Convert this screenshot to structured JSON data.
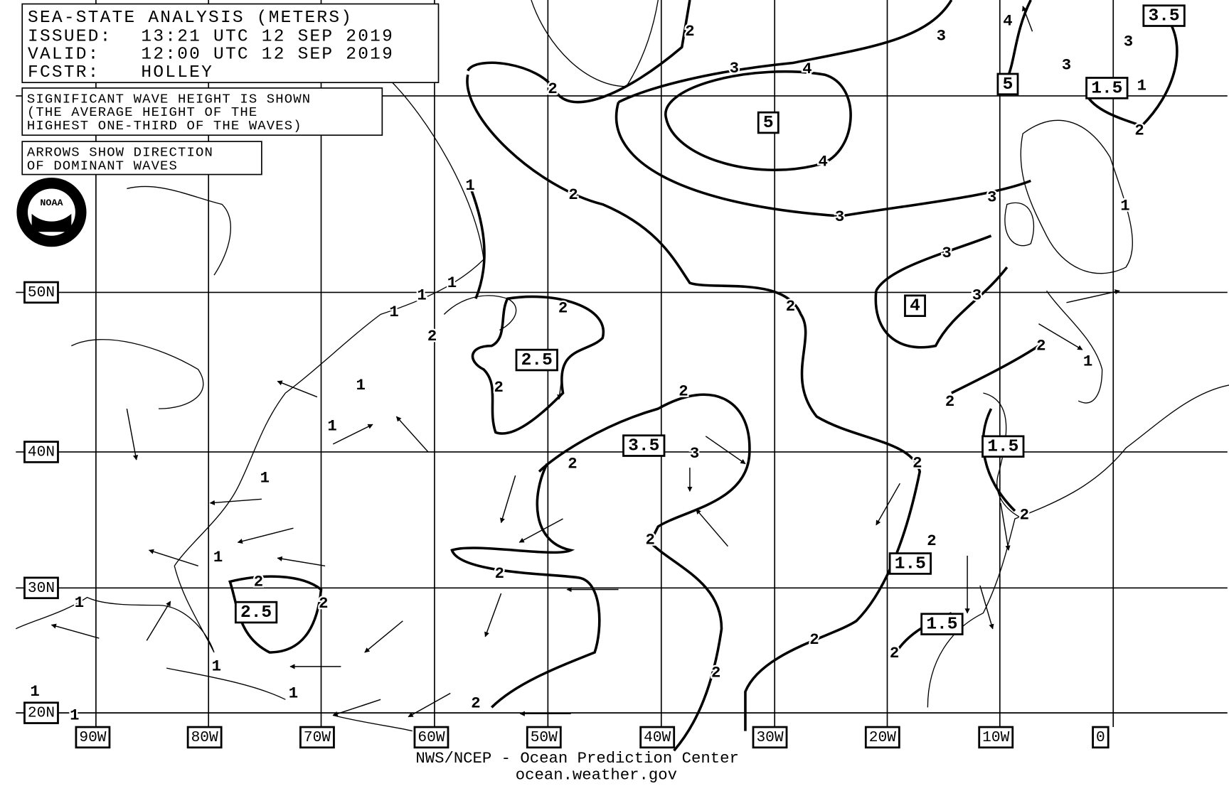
{
  "header": {
    "title": "SEA-STATE ANALYSIS (METERS)",
    "issued_label": "ISSUED:",
    "issued": "13:21 UTC 12 SEP 2019",
    "valid_label": "VALID:",
    "valid": "12:00 UTC 12 SEP 2019",
    "forecaster_label": "FCSTR:",
    "forecaster": "HOLLEY"
  },
  "notes": {
    "wave_height": [
      "SIGNIFICANT WAVE HEIGHT IS SHOWN",
      "(THE AVERAGE HEIGHT OF THE",
      "HIGHEST ONE-THIRD OF THE WAVES)"
    ],
    "arrows": [
      "ARROWS SHOW DIRECTION",
      "OF DOMINANT WAVES"
    ]
  },
  "logo": "NOAA",
  "latitudes": [
    "50N",
    "40N",
    "30N",
    "20N"
  ],
  "longitudes": [
    "90W",
    "80W",
    "70W",
    "60W",
    "50W",
    "40W",
    "30W",
    "20W",
    "10W",
    "0"
  ],
  "contour_labels": [
    "2",
    "3",
    "3",
    "4",
    "2",
    "4",
    "2",
    "3",
    "3",
    "1",
    "3",
    "3",
    "2",
    "2",
    "1",
    "1",
    "1",
    "2",
    "1",
    "1",
    "2",
    "3",
    "3",
    "4",
    "2",
    "1",
    "2",
    "2",
    "2",
    "1",
    "1",
    "3",
    "2",
    "2",
    "1",
    "2",
    "2",
    "2",
    "2",
    "1",
    "2",
    "2",
    "1",
    "1",
    "1",
    "1",
    "1",
    "2",
    "2",
    "2",
    "2"
  ],
  "boxed_labels": [
    "3.5",
    "5",
    "1.5",
    "5",
    "4",
    "2.5",
    "3.5",
    "1.5",
    "1.5",
    "2.5",
    "1.5"
  ],
  "footer": {
    "agency": "NWS/NCEP - Ocean Prediction Center",
    "url": "ocean.weather.gov"
  }
}
